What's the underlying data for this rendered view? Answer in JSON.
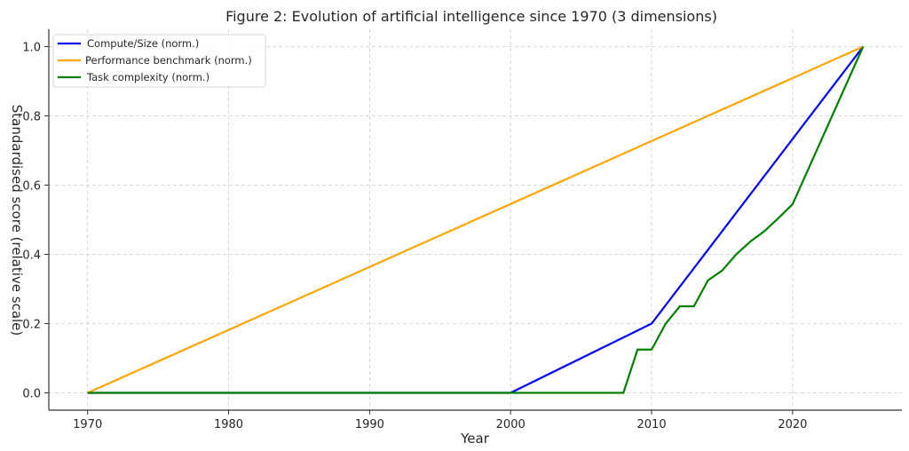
{
  "chart_data": {
    "type": "line",
    "title": "Figure 2: Evolution of artificial intelligence since 1970 (3 dimensions)",
    "xlabel": "Year",
    "ylabel": "Standardised score (relative scale)",
    "xlim": [
      1967.25,
      2027.75
    ],
    "ylim": [
      -0.05,
      1.05
    ],
    "xticks": [
      1970,
      1980,
      1990,
      2000,
      2010,
      2020
    ],
    "yticks": [
      0.0,
      0.2,
      0.4,
      0.6,
      0.8,
      1.0
    ],
    "ytick_labels": [
      "0.0",
      "0.2",
      "0.4",
      "0.6",
      "0.8",
      "1.0"
    ],
    "grid": true,
    "legend_position": "top-left",
    "series": [
      {
        "name": "Compute/Size (norm.)",
        "color": "#0000ff",
        "x": [
          1970,
          2000,
          2010,
          2025
        ],
        "y": [
          0,
          0,
          0.2,
          1.0
        ]
      },
      {
        "name": "Performance benchmark (norm.)",
        "color": "#ffa500",
        "x": [
          1970,
          2025
        ],
        "y": [
          0,
          1.0
        ]
      },
      {
        "name": "Task complexity (norm.)",
        "color": "#008000",
        "x": [
          1970,
          2008,
          2009,
          2010,
          2011,
          2012,
          2013,
          2014,
          2015,
          2016,
          2017,
          2018,
          2019,
          2020,
          2025
        ],
        "y": [
          0,
          0,
          0.125,
          0.125,
          0.2,
          0.25,
          0.25,
          0.325,
          0.353,
          0.4,
          0.437,
          0.467,
          0.505,
          0.545,
          1.0
        ]
      }
    ]
  }
}
